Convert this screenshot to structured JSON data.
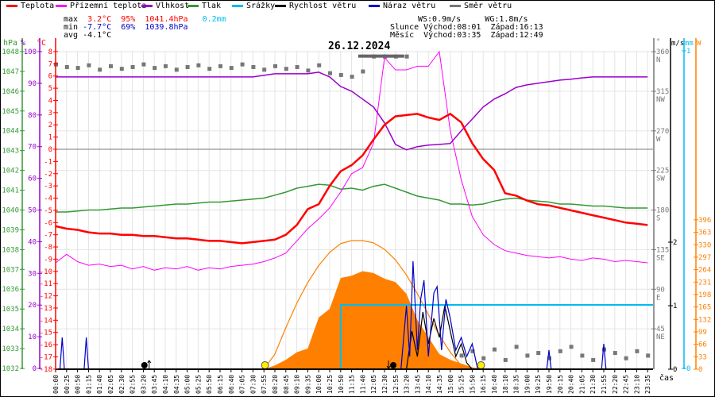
{
  "legend": [
    {
      "label": "Teplota",
      "color": "#ff0000"
    },
    {
      "label": "Přízemní teplota",
      "color": "#ff00ff"
    },
    {
      "label": "Vlhkost",
      "color": "#9900cc"
    },
    {
      "label": "Tlak",
      "color": "#339933"
    },
    {
      "label": "Srážky",
      "color": "#00bbee"
    },
    {
      "label": "Rychlost větru",
      "color": "#000000"
    },
    {
      "label": "Náraz větru",
      "color": "#0000cc"
    },
    {
      "label": "Směr větru",
      "color": "#777777"
    }
  ],
  "stats": {
    "max_label": "max",
    "max_temp": "3.2°C",
    "max_hum": "95%",
    "max_press": "1041.4hPa",
    "max_rain": "0.2mm",
    "min_label": "min",
    "min_temp": "-7.7°C",
    "min_hum": "69%",
    "min_press": "1039.8hPa",
    "avg_label": "avg",
    "avg_temp": "-4.1°C"
  },
  "astro": {
    "ws": "WS:0.9m/s",
    "wg": "WG:1.8m/s",
    "sun_label": "Slunce",
    "sun_rise": "Východ:08:01",
    "sun_set": "Západ:16:13",
    "moon_label": "Měsíc",
    "moon_rise": "Východ:03:35",
    "moon_set": "Západ:12:49"
  },
  "chart_data": {
    "type": "line",
    "title": "26.12.2024",
    "xlabel": "čas",
    "axis_units": {
      "press": "hPa",
      "hum": "%",
      "temp": "°C",
      "dir": "°",
      "wind": "m/s",
      "rain": "mm",
      "solar": "W"
    },
    "x": [
      "00:00",
      "00:25",
      "00:50",
      "01:15",
      "01:40",
      "02:05",
      "02:30",
      "02:55",
      "03:20",
      "03:45",
      "04:10",
      "04:35",
      "05:00",
      "05:25",
      "05:50",
      "06:15",
      "06:40",
      "07:05",
      "07:30",
      "07:55",
      "08:20",
      "08:45",
      "09:10",
      "09:35",
      "10:00",
      "10:25",
      "10:50",
      "11:15",
      "11:40",
      "12:05",
      "12:30",
      "12:55",
      "13:20",
      "13:45",
      "14:10",
      "14:35",
      "15:00",
      "15:25",
      "15:50",
      "16:15",
      "16:40",
      "18:10",
      "18:35",
      "19:00",
      "19:25",
      "19:50",
      "20:15",
      "20:40",
      "21:05",
      "21:30",
      "21:55",
      "22:20",
      "22:45",
      "23:10",
      "23:35"
    ],
    "ticks": {
      "press": [
        1032,
        1033,
        1034,
        1035,
        1036,
        1037,
        1038,
        1039,
        1040,
        1041,
        1042,
        1043,
        1044,
        1045,
        1046,
        1047,
        1048
      ],
      "hum": [
        0,
        10,
        20,
        30,
        40,
        50,
        60,
        70,
        80,
        90,
        100
      ],
      "temp": [
        -18,
        -17,
        -16,
        -15,
        -14,
        -13,
        -12,
        -11,
        -10,
        -9,
        -8,
        -7,
        -6,
        -5,
        -4,
        -3,
        -2,
        -1,
        0,
        1,
        2,
        3,
        4,
        5,
        6,
        7,
        8
      ],
      "dir": [
        {
          "v": 45,
          "c": "NE"
        },
        {
          "v": 90,
          "c": "E"
        },
        {
          "v": 135,
          "c": "SE"
        },
        {
          "v": 180,
          "c": "S"
        },
        {
          "v": 225,
          "c": "SW"
        },
        {
          "v": 270,
          "c": "W"
        },
        {
          "v": 315,
          "c": "NW"
        },
        {
          "v": 360,
          "c": "N"
        }
      ],
      "wind": [
        0,
        1,
        2
      ],
      "rain": [
        0,
        1
      ],
      "solar": [
        0,
        33,
        66,
        99,
        132,
        165,
        198,
        231,
        264,
        297,
        330,
        363,
        396
      ]
    },
    "series": [
      {
        "name": "Teplota",
        "unit": "°C",
        "values": [
          -6.3,
          -6.5,
          -6.6,
          -6.8,
          -6.9,
          -6.9,
          -7.0,
          -7.0,
          -7.1,
          -7.1,
          -7.2,
          -7.3,
          -7.3,
          -7.4,
          -7.5,
          -7.5,
          -7.6,
          -7.7,
          -7.6,
          -7.5,
          -7.4,
          -7.0,
          -6.2,
          -4.9,
          -4.5,
          -3.0,
          -1.8,
          -1.3,
          -0.5,
          0.8,
          2.0,
          2.7,
          2.8,
          2.9,
          2.6,
          2.4,
          2.9,
          2.2,
          0.5,
          -0.8,
          -1.7,
          -3.6,
          -3.8,
          -4.2,
          -4.5,
          -4.6,
          -4.8,
          -5.0,
          -5.2,
          -5.4,
          -5.6,
          -5.8,
          -6.0,
          -6.1,
          -6.2
        ]
      },
      {
        "name": "Přízemní teplota",
        "unit": "°C",
        "values": [
          -9.3,
          -8.6,
          -9.2,
          -9.5,
          -9.4,
          -9.6,
          -9.5,
          -9.8,
          -9.6,
          -9.9,
          -9.7,
          -9.8,
          -9.6,
          -9.9,
          -9.7,
          -9.8,
          -9.6,
          -9.5,
          -9.4,
          -9.2,
          -8.9,
          -8.5,
          -7.5,
          -6.5,
          -5.7,
          -4.8,
          -3.5,
          -2.0,
          -1.5,
          0.5,
          7.5,
          6.5,
          6.5,
          6.8,
          6.8,
          8.0,
          1.5,
          -2.5,
          -5.5,
          -7.0,
          -7.8,
          -8.3,
          -8.5,
          -8.7,
          -8.8,
          -8.9,
          -8.8,
          -9.0,
          -9.1,
          -8.9,
          -9.0,
          -9.2,
          -9.1,
          -9.2,
          -9.3
        ]
      },
      {
        "name": "Vlhkost",
        "unit": "%",
        "values": [
          92,
          92,
          92,
          92,
          92,
          92,
          92,
          92,
          92,
          92,
          92,
          92,
          92,
          92,
          92,
          92,
          92,
          92,
          92,
          92.5,
          93,
          93,
          93,
          93,
          93.5,
          92,
          89,
          87.5,
          85,
          82.5,
          77.5,
          70.7,
          69,
          70,
          70.5,
          70.7,
          71,
          75,
          78.7,
          82.5,
          85,
          86.7,
          88.7,
          89.5,
          90,
          90.5,
          91,
          91.3,
          91.7,
          92,
          92,
          92,
          92,
          92,
          92
        ]
      },
      {
        "name": "Tlak",
        "unit": "hPa",
        "values": [
          1039.9,
          1039.9,
          1039.95,
          1040.0,
          1040.0,
          1040.05,
          1040.1,
          1040.1,
          1040.15,
          1040.2,
          1040.25,
          1040.3,
          1040.3,
          1040.35,
          1040.4,
          1040.4,
          1040.45,
          1040.5,
          1040.55,
          1040.6,
          1040.75,
          1040.9,
          1041.1,
          1041.2,
          1041.3,
          1041.25,
          1041.05,
          1041.1,
          1041.0,
          1041.2,
          1041.3,
          1041.1,
          1040.9,
          1040.7,
          1040.6,
          1040.5,
          1040.3,
          1040.3,
          1040.25,
          1040.3,
          1040.45,
          1040.55,
          1040.6,
          1040.5,
          1040.45,
          1040.4,
          1040.3,
          1040.3,
          1040.25,
          1040.2,
          1040.2,
          1040.15,
          1040.1,
          1040.1,
          1040.1
        ]
      },
      {
        "name": "Směr větru",
        "unit": "°",
        "values": [
          346,
          343,
          342,
          345,
          340,
          344,
          341,
          343,
          346,
          342,
          344,
          340,
          343,
          345,
          341,
          344,
          342,
          346,
          343,
          340,
          344,
          341,
          343,
          339,
          345,
          336,
          334,
          332,
          338,
          355,
          355,
          355,
          355,
          null,
          null,
          null,
          null,
          15,
          20,
          12,
          22,
          10,
          25,
          15,
          18,
          12,
          20,
          25,
          15,
          10,
          22,
          18,
          12,
          20,
          15
        ]
      },
      {
        "name": "Srážky",
        "unit": "mm",
        "values": [
          0,
          0,
          0,
          0,
          0,
          0,
          0,
          0,
          0,
          0,
          0,
          0,
          0,
          0,
          0,
          0,
          0,
          0,
          0,
          0,
          0,
          0,
          0,
          0,
          0,
          0,
          0.2,
          0.2,
          0.2,
          0.2,
          0.2,
          0.2,
          0.2,
          0.2,
          0.2,
          0.2,
          0.2,
          0.2,
          0.2,
          0.2,
          0.2,
          0.2,
          0.2,
          0.2,
          0.2,
          0.2,
          0.2,
          0.2,
          0.2,
          0.2,
          0.2,
          0.2,
          0.2,
          0.2,
          0.2
        ]
      },
      {
        "name": "Sluneční záření",
        "unit": "W",
        "values": [
          0,
          0,
          0,
          0,
          0,
          0,
          0,
          0,
          0,
          0,
          0,
          0,
          0,
          0,
          0,
          0,
          0,
          0,
          0,
          0,
          10,
          25,
          45,
          55,
          137,
          160,
          242,
          248,
          260,
          255,
          240,
          231,
          200,
          130,
          85,
          40,
          25,
          15,
          5,
          0,
          0,
          0,
          0,
          0,
          0,
          0,
          0,
          0,
          0,
          0,
          0,
          0,
          0,
          0,
          0
        ]
      },
      {
        "name": "Teoretické záření",
        "unit": "W",
        "values": [
          0,
          0,
          0,
          0,
          0,
          0,
          0,
          0,
          0,
          0,
          0,
          0,
          0,
          0,
          0,
          0,
          0,
          0,
          0,
          0,
          40,
          110,
          175,
          230,
          275,
          310,
          333,
          341,
          341,
          335,
          318,
          290,
          250,
          200,
          145,
          90,
          45,
          10,
          0,
          0,
          0,
          0,
          0,
          0,
          0,
          0,
          0,
          0,
          0,
          0,
          0,
          0,
          0,
          0,
          0
        ]
      },
      {
        "name": "Náraz větru",
        "unit": "m/s",
        "points": [
          [
            0,
            0
          ],
          [
            0.4,
            0
          ],
          [
            0.6,
            0.5
          ],
          [
            0.8,
            0
          ],
          [
            2.6,
            0
          ],
          [
            2.8,
            0.5
          ],
          [
            3.0,
            0
          ],
          [
            31.5,
            0
          ],
          [
            32.0,
            1.0
          ],
          [
            32.3,
            0.2
          ],
          [
            32.6,
            1.7
          ],
          [
            33.0,
            0.3
          ],
          [
            33.3,
            1.1
          ],
          [
            33.6,
            1.4
          ],
          [
            34.0,
            0.2
          ],
          [
            34.5,
            1.2
          ],
          [
            34.8,
            1.3
          ],
          [
            35.2,
            0.3
          ],
          [
            35.6,
            1.1
          ],
          [
            36.0,
            0.8
          ],
          [
            36.5,
            0.3
          ],
          [
            37.0,
            0.5
          ],
          [
            37.5,
            0.2
          ],
          [
            38.0,
            0.4
          ],
          [
            38.5,
            0
          ],
          [
            44.8,
            0
          ],
          [
            45,
            0.3
          ],
          [
            45.2,
            0
          ],
          [
            49.8,
            0
          ],
          [
            50,
            0.4
          ],
          [
            50.2,
            0
          ],
          [
            54,
            0
          ]
        ]
      },
      {
        "name": "Rychlost větru",
        "unit": "m/s",
        "points": [
          [
            0,
            0
          ],
          [
            32,
            0
          ],
          [
            32.5,
            0.6
          ],
          [
            33,
            0.2
          ],
          [
            33.5,
            0.9
          ],
          [
            34,
            0.4
          ],
          [
            34.5,
            0.8
          ],
          [
            35,
            0.5
          ],
          [
            35.5,
            1.0
          ],
          [
            36,
            0.6
          ],
          [
            36.5,
            0.2
          ],
          [
            37,
            0.4
          ],
          [
            37.5,
            0.1
          ],
          [
            38,
            0
          ],
          [
            54,
            0
          ]
        ]
      }
    ],
    "markers": [
      {
        "type": "moonrise",
        "at": "03:35",
        "index": 8.1
      },
      {
        "type": "sunrise",
        "at": "08:01",
        "index": 19.1
      },
      {
        "type": "moonset",
        "at": "12:49",
        "index": 30.8
      },
      {
        "type": "sunset",
        "at": "16:13",
        "index": 38.8
      }
    ]
  }
}
